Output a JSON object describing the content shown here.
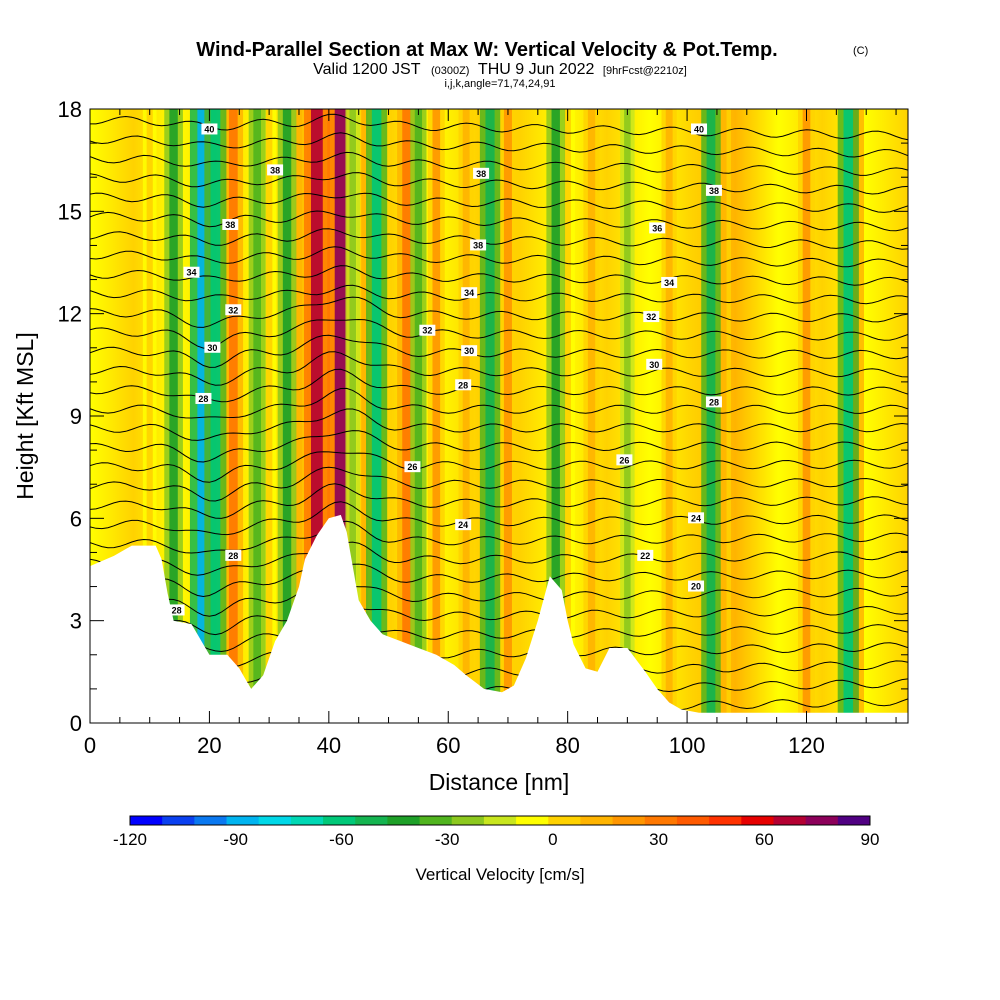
{
  "chart_data": {
    "type": "heatmap",
    "title": "Wind-Parallel Section at Max W: Vertical Velocity & Pot.Temp.",
    "title_mark": "(C)",
    "subtitle": {
      "valid": "Valid 1200 JST",
      "utc": "(0300Z)",
      "date": "THU 9 Jun 2022",
      "forecast": "[9hrFcst@2210z]"
    },
    "section_info": "i,j,k,angle=71,74,24,91",
    "xlabel": "Distance [nm]",
    "ylabel": "Height [Kft MSL]",
    "xlim": [
      0,
      137
    ],
    "ylim": [
      0,
      18
    ],
    "x_ticks": [
      "0",
      "20",
      "40",
      "60",
      "80",
      "100",
      "120"
    ],
    "y_ticks": [
      "0",
      "3",
      "6",
      "9",
      "12",
      "15",
      "18"
    ],
    "colorbar": {
      "label": "Vertical Velocity [cm/s]",
      "ticks": [
        "-120",
        "-90",
        "-60",
        "-30",
        "0",
        "30",
        "60",
        "90"
      ],
      "range": [
        -120,
        90
      ],
      "step": 10,
      "colors": [
        "#0000ff",
        "#0a40f0",
        "#0a78f0",
        "#00b4f0",
        "#00d8e8",
        "#00d8b4",
        "#00c878",
        "#14b450",
        "#1ea028",
        "#50b41e",
        "#8cc81e",
        "#c8e61e",
        "#ffff00",
        "#ffd200",
        "#ffb400",
        "#ff9600",
        "#ff7800",
        "#ff5a00",
        "#ff3200",
        "#e60000",
        "#b40032",
        "#8c005a",
        "#500082"
      ]
    },
    "shading": "vertical velocity (cm/s)",
    "contours": "potential temperature (°C)",
    "updraft_columns": [
      {
        "x": 10,
        "w": 10
      },
      {
        "x": 18,
        "w": 5
      },
      {
        "x": 24,
        "w": 45
      },
      {
        "x": 30,
        "w": 15
      },
      {
        "x": 35,
        "w": 25
      },
      {
        "x": 38,
        "w": 85
      },
      {
        "x": 42,
        "w": 90
      },
      {
        "x": 46,
        "w": 20
      },
      {
        "x": 53,
        "w": 40
      },
      {
        "x": 58,
        "w": 30
      },
      {
        "x": 63,
        "w": 20
      },
      {
        "x": 70,
        "w": 35
      },
      {
        "x": 80,
        "w": 15
      },
      {
        "x": 84,
        "w": 25
      },
      {
        "x": 97,
        "w": 20
      },
      {
        "x": 106,
        "w": 25
      },
      {
        "x": 120,
        "w": 30
      },
      {
        "x": 128,
        "w": 45
      }
    ],
    "downdraft_columns": [
      {
        "x": 14,
        "w": -40
      },
      {
        "x": 19,
        "w": -90
      },
      {
        "x": 21,
        "w": -60
      },
      {
        "x": 28,
        "w": -30
      },
      {
        "x": 33,
        "w": -40
      },
      {
        "x": 44,
        "w": -15
      },
      {
        "x": 48,
        "w": -55
      },
      {
        "x": 55,
        "w": -25
      },
      {
        "x": 67,
        "w": -50
      },
      {
        "x": 78,
        "w": -40
      },
      {
        "x": 90,
        "w": -15
      },
      {
        "x": 104,
        "w": -45
      },
      {
        "x": 127,
        "w": -55
      }
    ],
    "contour_labels": [
      {
        "text": "40",
        "x": 20,
        "y": 17.4
      },
      {
        "text": "38",
        "x": 31,
        "y": 16.2
      },
      {
        "text": "38",
        "x": 23.5,
        "y": 14.6
      },
      {
        "text": "34",
        "x": 17,
        "y": 13.2
      },
      {
        "text": "32",
        "x": 24,
        "y": 12.1
      },
      {
        "text": "30",
        "x": 20.5,
        "y": 11.0
      },
      {
        "text": "28",
        "x": 19,
        "y": 9.5
      },
      {
        "text": "38",
        "x": 65.5,
        "y": 16.1
      },
      {
        "text": "38",
        "x": 65,
        "y": 14.0
      },
      {
        "text": "34",
        "x": 63.5,
        "y": 12.6
      },
      {
        "text": "32",
        "x": 56.5,
        "y": 11.5
      },
      {
        "text": "30",
        "x": 63.5,
        "y": 10.9
      },
      {
        "text": "28",
        "x": 62.5,
        "y": 9.9
      },
      {
        "text": "26",
        "x": 54,
        "y": 7.5
      },
      {
        "text": "24",
        "x": 62.5,
        "y": 5.8
      },
      {
        "text": "40",
        "x": 102,
        "y": 17.4
      },
      {
        "text": "38",
        "x": 104.5,
        "y": 15.6
      },
      {
        "text": "36",
        "x": 95,
        "y": 14.5
      },
      {
        "text": "34",
        "x": 97,
        "y": 12.9
      },
      {
        "text": "32",
        "x": 94,
        "y": 11.9
      },
      {
        "text": "30",
        "x": 94.5,
        "y": 10.5
      },
      {
        "text": "28",
        "x": 104.5,
        "y": 9.4
      },
      {
        "text": "26",
        "x": 89.5,
        "y": 7.7
      },
      {
        "text": "24",
        "x": 101.5,
        "y": 6.0
      },
      {
        "text": "22",
        "x": 93,
        "y": 4.9
      },
      {
        "text": "20",
        "x": 101.5,
        "y": 4.0
      },
      {
        "text": "28",
        "x": 24,
        "y": 4.9
      },
      {
        "text": "28",
        "x": 14.5,
        "y": 3.3
      }
    ],
    "terrain": [
      [
        0,
        4.6
      ],
      [
        4,
        4.9
      ],
      [
        7,
        5.2
      ],
      [
        11,
        5.2
      ],
      [
        12,
        4.8
      ],
      [
        13,
        3.8
      ],
      [
        14,
        3.0
      ],
      [
        17,
        2.9
      ],
      [
        19,
        2.3
      ],
      [
        20,
        2.0
      ],
      [
        23,
        2.0
      ],
      [
        25,
        1.6
      ],
      [
        26,
        1.3
      ],
      [
        27,
        1.0
      ],
      [
        29,
        1.4
      ],
      [
        31,
        2.4
      ],
      [
        33,
        3.0
      ],
      [
        35,
        4.0
      ],
      [
        36,
        4.8
      ],
      [
        38,
        5.5
      ],
      [
        40,
        6.0
      ],
      [
        42,
        6.1
      ],
      [
        43,
        5.6
      ],
      [
        45,
        3.6
      ],
      [
        47,
        3.0
      ],
      [
        49,
        2.6
      ],
      [
        52,
        2.4
      ],
      [
        55,
        2.2
      ],
      [
        58,
        2.0
      ],
      [
        61,
        1.7
      ],
      [
        63,
        1.4
      ],
      [
        66,
        1.0
      ],
      [
        69,
        0.9
      ],
      [
        71,
        1.1
      ],
      [
        73,
        1.9
      ],
      [
        75,
        3.0
      ],
      [
        77,
        4.3
      ],
      [
        79,
        3.9
      ],
      [
        80,
        3.0
      ],
      [
        81,
        2.3
      ],
      [
        83,
        1.6
      ],
      [
        85,
        1.5
      ],
      [
        87,
        2.2
      ],
      [
        90,
        2.2
      ],
      [
        93,
        1.5
      ],
      [
        95,
        1.0
      ],
      [
        97,
        0.6
      ],
      [
        99,
        0.4
      ],
      [
        102,
        0.3
      ],
      [
        105,
        0.3
      ],
      [
        137,
        0.3
      ]
    ]
  }
}
